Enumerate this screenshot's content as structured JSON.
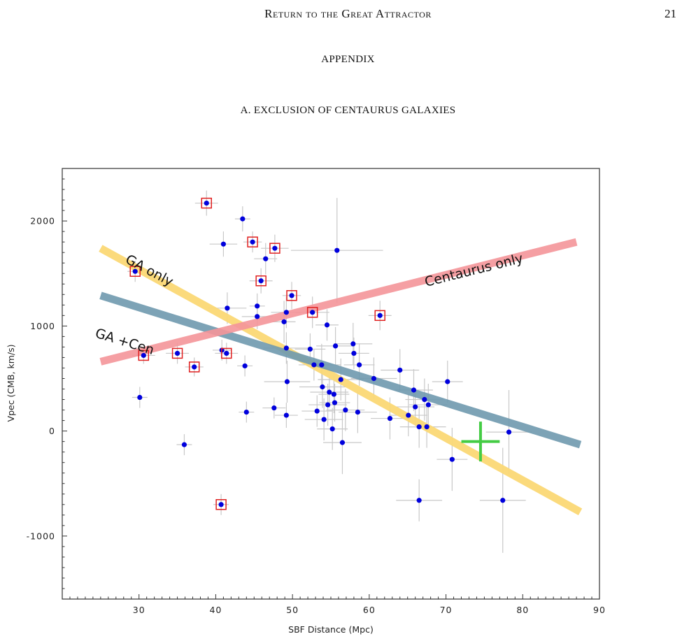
{
  "header": {
    "running_title": "Return to the Great Attractor",
    "page_number": "21"
  },
  "appendix_heading": "APPENDIX",
  "subsection_heading": "A. EXCLUSION OF CENTAURUS GALAXIES",
  "chart_data": {
    "type": "scatter",
    "xlabel": "SBF Distance (Mpc)",
    "ylabel": "Vpec  (CMB, km/s)",
    "xlim": [
      20,
      90
    ],
    "ylim": [
      -1600,
      2500
    ],
    "x_ticks": [
      30,
      40,
      50,
      60,
      70,
      80,
      90
    ],
    "y_ticks": [
      -1000,
      0,
      1000,
      2000
    ],
    "grid": false,
    "annotations": [
      "GA only",
      "GA +Cen",
      "Centaurus only"
    ],
    "colors": {
      "points": "#0000dd",
      "error_bars": "#c8c8c8",
      "boxes": "#e02020",
      "ga_only_line": "#fbd976",
      "ga_cen_line": "#6f9aaf",
      "centaurus_line": "#f5959a",
      "cross": "#44cc44"
    },
    "fit_lines": [
      {
        "label": "GA only",
        "x": [
          25,
          87.5
        ],
        "y": [
          1740,
          -770
        ]
      },
      {
        "label": "GA +Cen",
        "x": [
          25,
          87.5
        ],
        "y": [
          1290,
          -130
        ]
      },
      {
        "label": "Centaurus only",
        "x": [
          25,
          87
        ],
        "y": [
          660,
          1800
        ]
      }
    ],
    "cross_marker": {
      "x": 74.5,
      "y": -100,
      "xerr": 2.5,
      "yerr": 190
    },
    "points": [
      {
        "x": 38.8,
        "y": 2170,
        "xerr": 1.5,
        "yerr": 120,
        "boxed": true
      },
      {
        "x": 43.5,
        "y": 2020,
        "xerr": 1.0,
        "yerr": 120
      },
      {
        "x": 44.8,
        "y": 1800,
        "xerr": 1.2,
        "yerr": 100,
        "boxed": true
      },
      {
        "x": 47.7,
        "y": 1740,
        "xerr": 1.8,
        "yerr": 130,
        "boxed": true
      },
      {
        "x": 41.0,
        "y": 1780,
        "xerr": 1.8,
        "yerr": 120
      },
      {
        "x": 46.5,
        "y": 1640,
        "xerr": 1.5,
        "yerr": 150
      },
      {
        "x": 55.8,
        "y": 1720,
        "xerr": 6.0,
        "yerr": 500
      },
      {
        "x": 29.5,
        "y": 1520,
        "xerr": 1.0,
        "yerr": 100,
        "boxed": true
      },
      {
        "x": 45.9,
        "y": 1430,
        "xerr": 1.5,
        "yerr": 120,
        "boxed": true
      },
      {
        "x": 49.9,
        "y": 1290,
        "xerr": 1.2,
        "yerr": 130,
        "boxed": true
      },
      {
        "x": 41.5,
        "y": 1170,
        "xerr": 2.5,
        "yerr": 150
      },
      {
        "x": 45.4,
        "y": 1190,
        "xerr": 1.0,
        "yerr": 120
      },
      {
        "x": 49.2,
        "y": 1130,
        "xerr": 2.0,
        "yerr": 150
      },
      {
        "x": 52.6,
        "y": 1130,
        "xerr": 2.2,
        "yerr": 150,
        "boxed": true
      },
      {
        "x": 61.4,
        "y": 1100,
        "xerr": 1.5,
        "yerr": 140,
        "boxed": true
      },
      {
        "x": 45.4,
        "y": 1090,
        "xerr": 2.0,
        "yerr": 120
      },
      {
        "x": 48.9,
        "y": 1040,
        "xerr": 1.5,
        "yerr": 200
      },
      {
        "x": 54.5,
        "y": 1010,
        "xerr": 1.5,
        "yerr": 150
      },
      {
        "x": 57.9,
        "y": 830,
        "xerr": 2.5,
        "yerr": 200
      },
      {
        "x": 52.3,
        "y": 780,
        "xerr": 2.0,
        "yerr": 150
      },
      {
        "x": 55.6,
        "y": 810,
        "xerr": 2.5,
        "yerr": 180
      },
      {
        "x": 49.2,
        "y": 790,
        "xerr": 3.0,
        "yerr": 150
      },
      {
        "x": 40.8,
        "y": 770,
        "xerr": 1.2,
        "yerr": 100
      },
      {
        "x": 41.4,
        "y": 740,
        "xerr": 1.5,
        "yerr": 100,
        "boxed": true
      },
      {
        "x": 35.0,
        "y": 740,
        "xerr": 1.5,
        "yerr": 100,
        "boxed": true
      },
      {
        "x": 30.6,
        "y": 720,
        "xerr": 1.5,
        "yerr": 80,
        "boxed": true
      },
      {
        "x": 58.0,
        "y": 740,
        "xerr": 2.0,
        "yerr": 150
      },
      {
        "x": 37.2,
        "y": 610,
        "xerr": 1.2,
        "yerr": 90,
        "boxed": true
      },
      {
        "x": 43.8,
        "y": 620,
        "xerr": 1.0,
        "yerr": 100
      },
      {
        "x": 52.8,
        "y": 630,
        "xerr": 2.0,
        "yerr": 150
      },
      {
        "x": 53.8,
        "y": 630,
        "xerr": 2.5,
        "yerr": 200
      },
      {
        "x": 58.7,
        "y": 630,
        "xerr": 2.0,
        "yerr": 200
      },
      {
        "x": 64.0,
        "y": 580,
        "xerr": 2.5,
        "yerr": 200
      },
      {
        "x": 56.3,
        "y": 490,
        "xerr": 3.0,
        "yerr": 200
      },
      {
        "x": 60.6,
        "y": 500,
        "xerr": 3.0,
        "yerr": 200
      },
      {
        "x": 70.2,
        "y": 470,
        "xerr": 2.0,
        "yerr": 200
      },
      {
        "x": 49.3,
        "y": 470,
        "xerr": 3.0,
        "yerr": 200
      },
      {
        "x": 53.9,
        "y": 420,
        "xerr": 3.0,
        "yerr": 200
      },
      {
        "x": 65.8,
        "y": 390,
        "xerr": 2.5,
        "yerr": 200
      },
      {
        "x": 54.8,
        "y": 370,
        "xerr": 2.5,
        "yerr": 150
      },
      {
        "x": 55.4,
        "y": 350,
        "xerr": 2.0,
        "yerr": 180
      },
      {
        "x": 30.1,
        "y": 320,
        "xerr": 1.0,
        "yerr": 100
      },
      {
        "x": 67.2,
        "y": 300,
        "xerr": 2.5,
        "yerr": 200
      },
      {
        "x": 55.5,
        "y": 270,
        "xerr": 2.0,
        "yerr": 180
      },
      {
        "x": 54.6,
        "y": 250,
        "xerr": 2.5,
        "yerr": 200
      },
      {
        "x": 67.7,
        "y": 250,
        "xerr": 2.5,
        "yerr": 200
      },
      {
        "x": 66.0,
        "y": 230,
        "xerr": 2.5,
        "yerr": 180
      },
      {
        "x": 47.6,
        "y": 220,
        "xerr": 1.5,
        "yerr": 100
      },
      {
        "x": 53.2,
        "y": 190,
        "xerr": 2.0,
        "yerr": 150
      },
      {
        "x": 56.9,
        "y": 200,
        "xerr": 2.5,
        "yerr": 200
      },
      {
        "x": 44.0,
        "y": 180,
        "xerr": 1.0,
        "yerr": 100
      },
      {
        "x": 58.5,
        "y": 180,
        "xerr": 2.5,
        "yerr": 200
      },
      {
        "x": 49.2,
        "y": 150,
        "xerr": 1.5,
        "yerr": 120
      },
      {
        "x": 65.1,
        "y": 150,
        "xerr": 2.5,
        "yerr": 200
      },
      {
        "x": 54.1,
        "y": 110,
        "xerr": 2.5,
        "yerr": 200
      },
      {
        "x": 62.7,
        "y": 120,
        "xerr": 2.5,
        "yerr": 200
      },
      {
        "x": 55.2,
        "y": 20,
        "xerr": 2.0,
        "yerr": 200
      },
      {
        "x": 66.5,
        "y": 40,
        "xerr": 2.5,
        "yerr": 200
      },
      {
        "x": 67.5,
        "y": 40,
        "xerr": 2.5,
        "yerr": 200
      },
      {
        "x": 78.2,
        "y": -10,
        "xerr": 3.0,
        "yerr": 400
      },
      {
        "x": 56.5,
        "y": -110,
        "xerr": 2.5,
        "yerr": 300
      },
      {
        "x": 35.9,
        "y": -130,
        "xerr": 1.0,
        "yerr": 100
      },
      {
        "x": 70.8,
        "y": -270,
        "xerr": 2.0,
        "yerr": 300
      },
      {
        "x": 66.5,
        "y": -660,
        "xerr": 3.0,
        "yerr": 200
      },
      {
        "x": 77.4,
        "y": -660,
        "xerr": 3.0,
        "yerr": 500
      },
      {
        "x": 40.7,
        "y": -700,
        "xerr": 1.0,
        "yerr": 100,
        "boxed": true
      }
    ]
  }
}
